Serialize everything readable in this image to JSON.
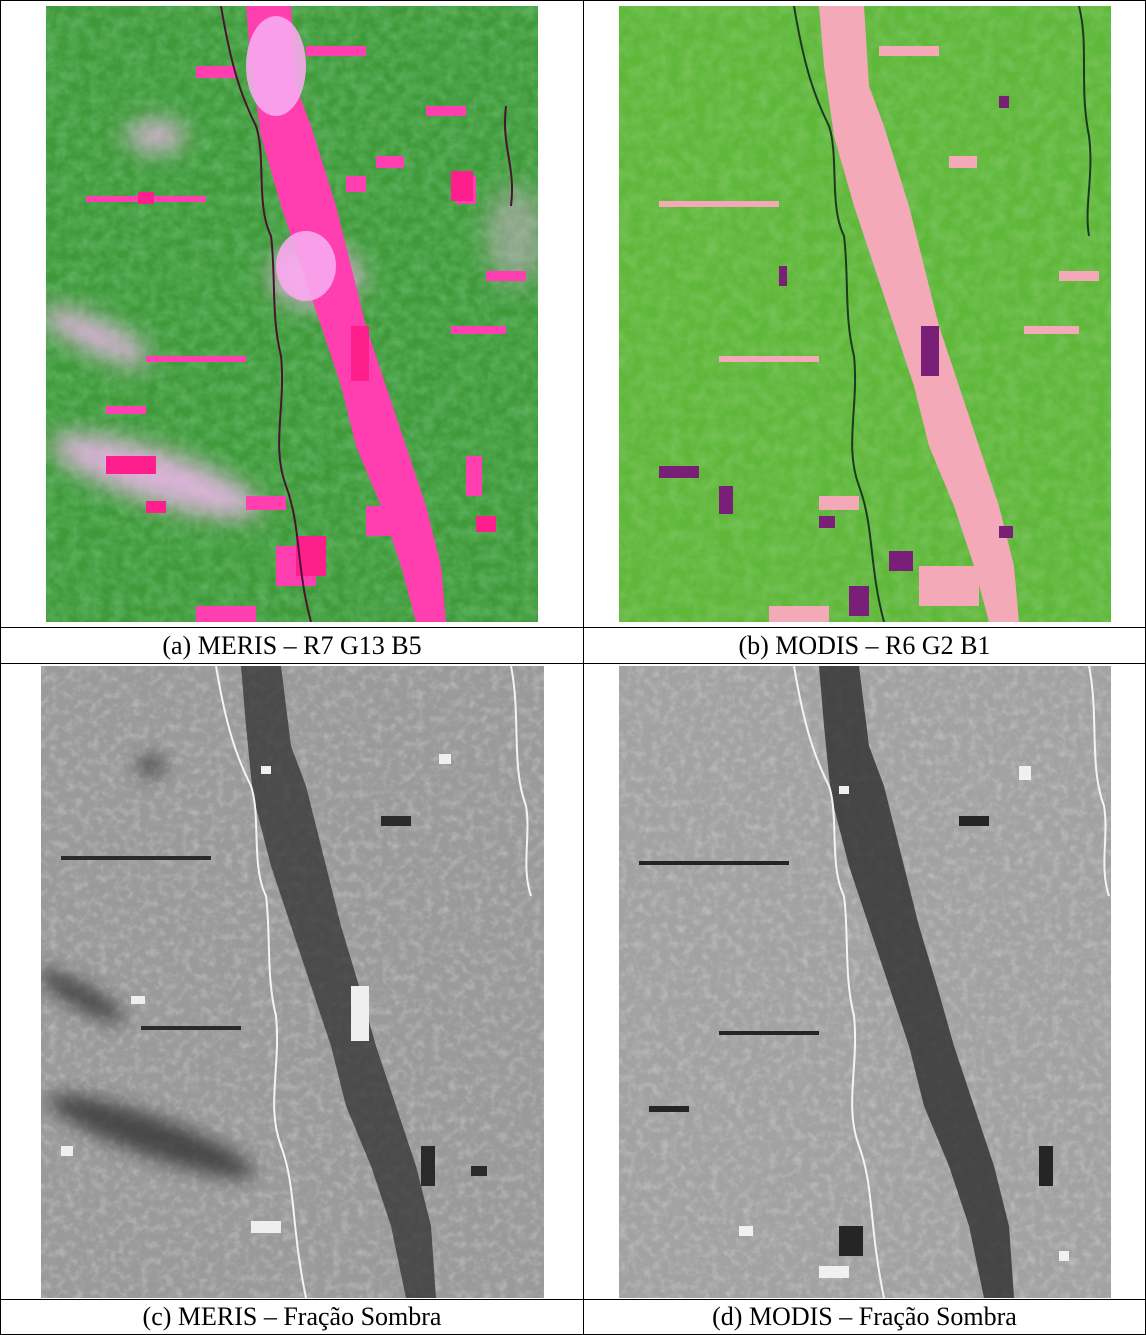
{
  "panels": [
    {
      "id": "a",
      "caption": "(a) MERIS – R7 G13 B5",
      "colors": {
        "background": "#3f9a3a",
        "forest_dark": "#2f7a33",
        "forest_light": "#5fc24d",
        "clearing": "#ff3fb0",
        "clearing_bright": "#ff1f8c",
        "haze": "#f3b6f0",
        "river": "#4a1430"
      }
    },
    {
      "id": "b",
      "caption": "(b) MODIS – R6 G2 B1",
      "colors": {
        "background": "#5fb83a",
        "forest_dark": "#3f8f2c",
        "forest_light": "#7fd34a",
        "clearing": "#f3a9b8",
        "clearing_bright": "#ff9fb0",
        "haze": "#e8c7a8",
        "river": "#1d3a20",
        "purple": "#7a1f78"
      }
    },
    {
      "id": "c",
      "caption": "(c) MERIS – Fração Sombra",
      "colors": {
        "background": "#9a9a9a",
        "light": "#c4c4c4",
        "dark": "#2a2a2a",
        "river": "#f4f4f4"
      }
    },
    {
      "id": "d",
      "caption": "(d) MODIS – Fração Sombra",
      "colors": {
        "background": "#a2a2a2",
        "light": "#cacaca",
        "dark": "#252525",
        "river": "#f4f4f4"
      }
    }
  ]
}
